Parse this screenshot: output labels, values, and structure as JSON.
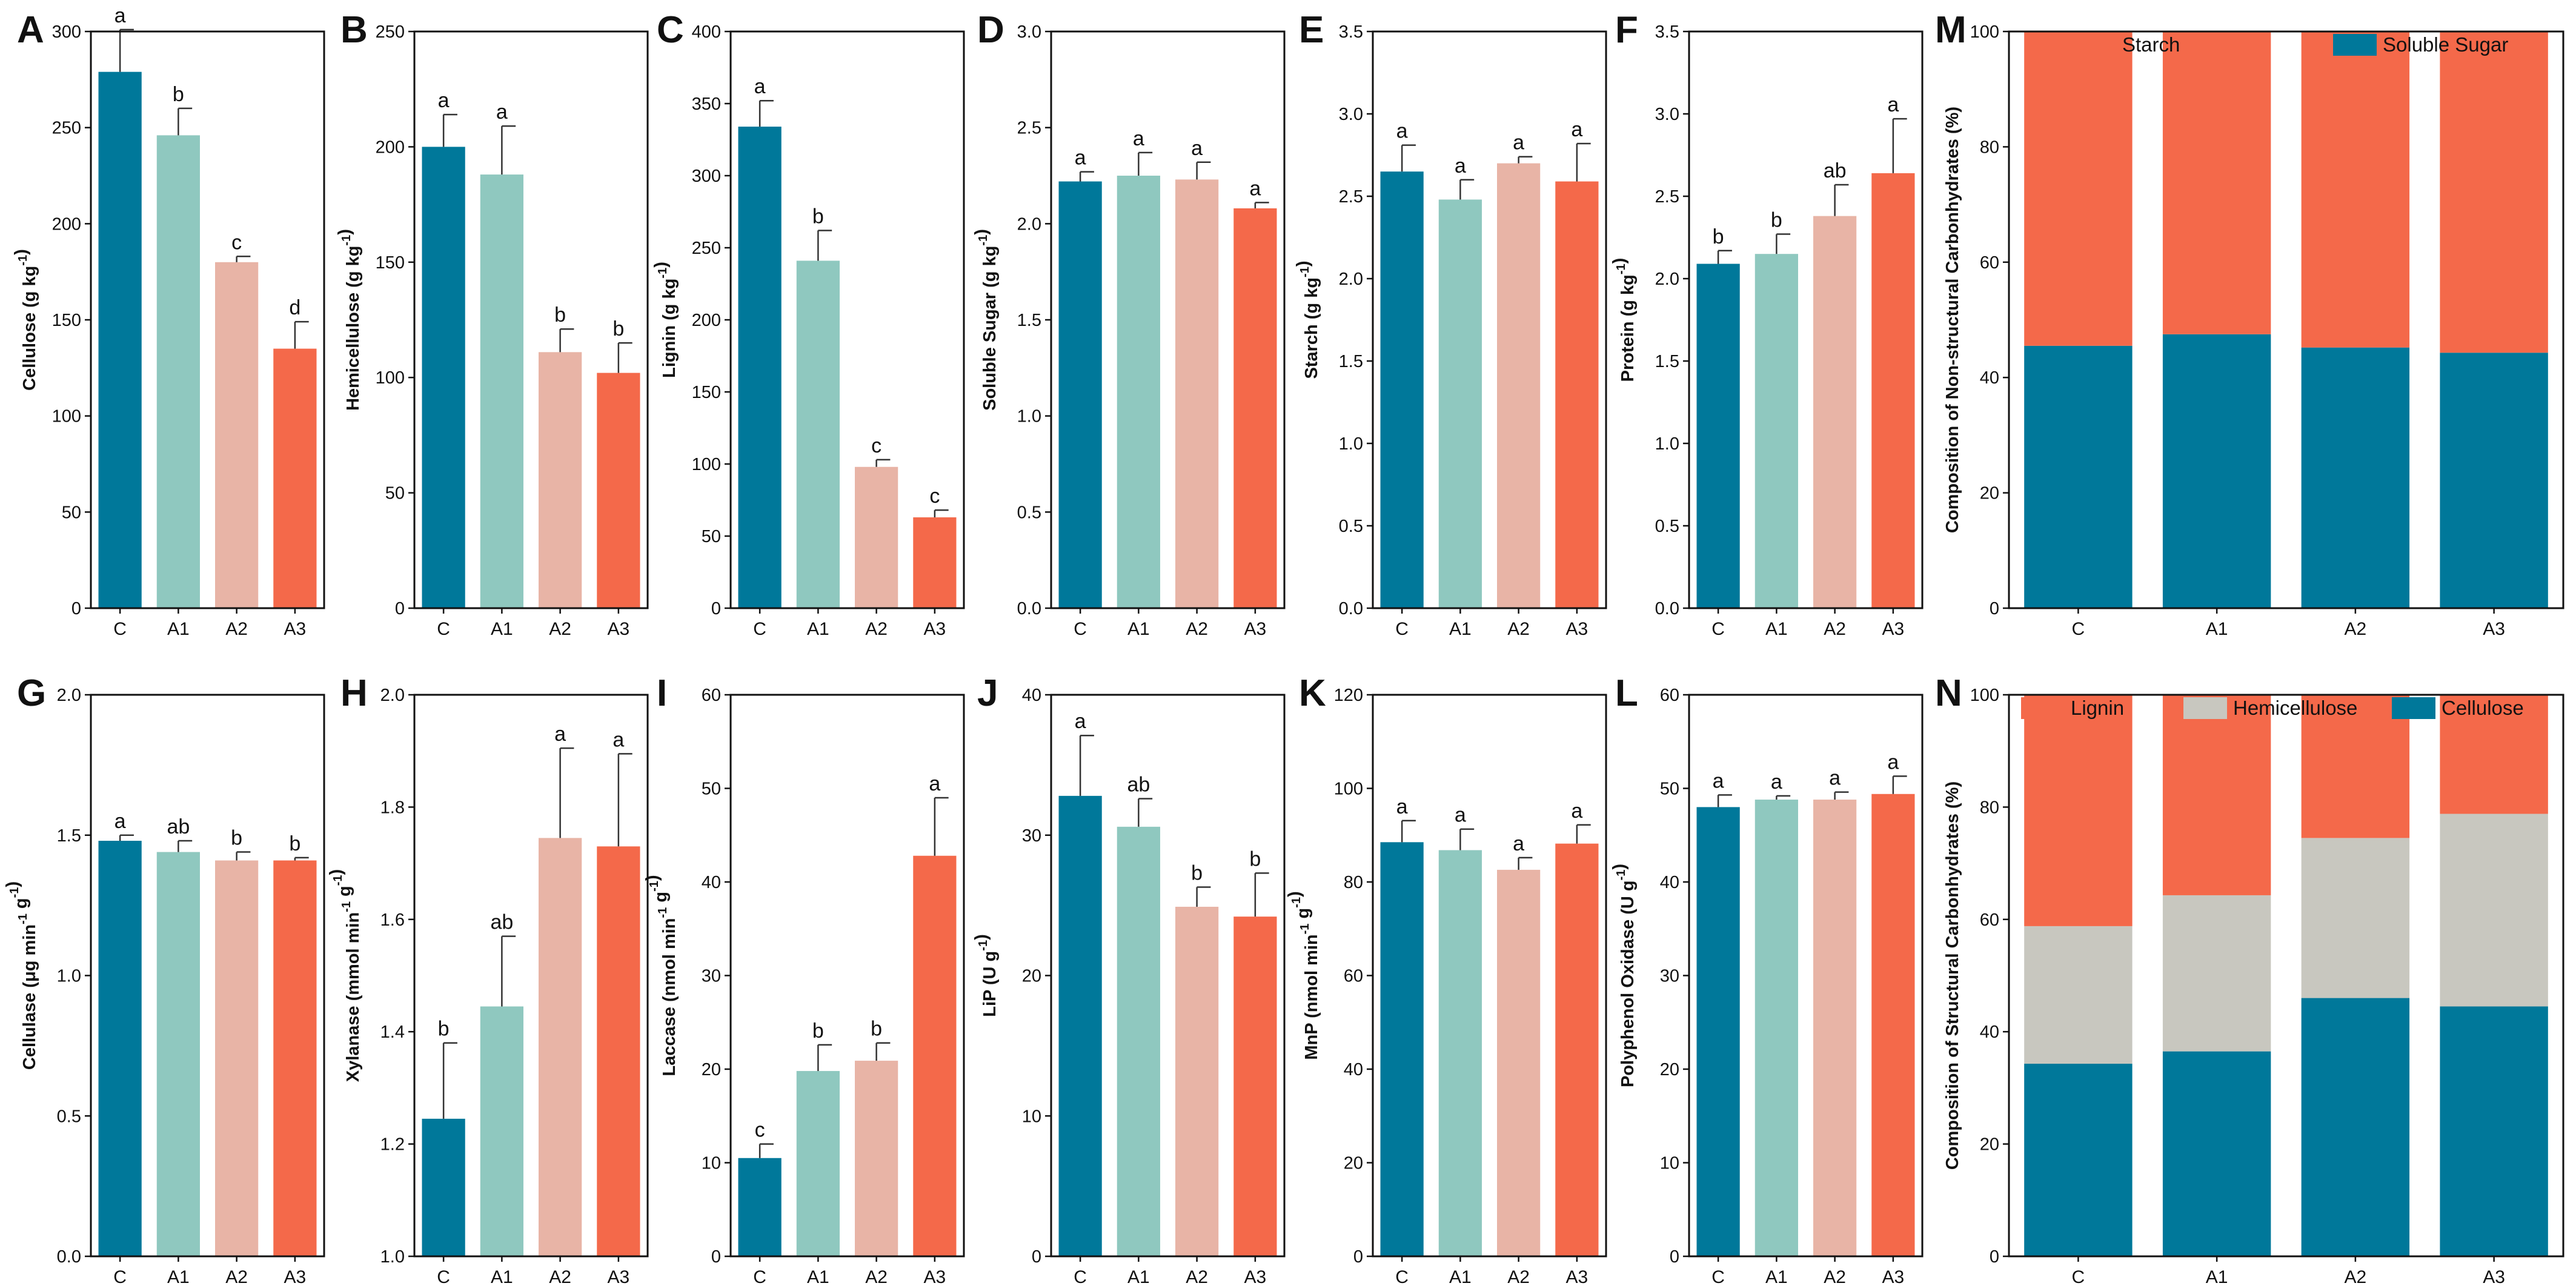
{
  "colors": {
    "C": "#00789A",
    "A1": "#8FC8BF",
    "A2": "#E8B4A6",
    "A3": "#F4694A",
    "Starch": "#F4694A",
    "SolubleSugar": "#00789A",
    "Lignin": "#F4694A",
    "Hemicellulose": "#C8C7BF",
    "Cellulose": "#00789A"
  },
  "chart_data": [
    {
      "id": "A",
      "type": "bar",
      "panel_label": "A",
      "ylabel": "Cellulose (g kg⁻¹)",
      "ylim": [
        0,
        300
      ],
      "yticks": [
        0,
        50,
        100,
        150,
        200,
        250,
        300
      ],
      "categories": [
        "C",
        "A1",
        "A2",
        "A3"
      ],
      "values": [
        279,
        246,
        180,
        135
      ],
      "errors": [
        22,
        14,
        3,
        14
      ],
      "letters": [
        "a",
        "b",
        "c",
        "d"
      ]
    },
    {
      "id": "B",
      "type": "bar",
      "panel_label": "B",
      "ylabel": "Hemicellulose (g kg⁻¹)",
      "ylim": [
        0,
        250
      ],
      "yticks": [
        0,
        50,
        100,
        150,
        200,
        250
      ],
      "categories": [
        "C",
        "A1",
        "A2",
        "A3"
      ],
      "values": [
        200,
        188,
        111,
        102
      ],
      "errors": [
        14,
        21,
        10,
        13
      ],
      "letters": [
        "a",
        "a",
        "b",
        "b"
      ]
    },
    {
      "id": "C",
      "type": "bar",
      "panel_label": "C",
      "ylabel": "Lignin (g kg⁻¹)",
      "ylim": [
        0,
        400
      ],
      "yticks": [
        0,
        50,
        100,
        150,
        200,
        250,
        300,
        350,
        400
      ],
      "categories": [
        "C",
        "A1",
        "A2",
        "A3"
      ],
      "values": [
        334,
        241,
        98,
        63
      ],
      "errors": [
        18,
        21,
        5,
        5
      ],
      "letters": [
        "a",
        "b",
        "c",
        "c"
      ]
    },
    {
      "id": "D",
      "type": "bar",
      "panel_label": "D",
      "ylabel": "Soluble Sugar (g kg⁻¹)",
      "ylim": [
        0,
        3.0
      ],
      "yticks": [
        0,
        0.5,
        1.0,
        1.5,
        2.0,
        2.5,
        3.0
      ],
      "categories": [
        "C",
        "A1",
        "A2",
        "A3"
      ],
      "values": [
        2.22,
        2.25,
        2.23,
        2.08
      ],
      "errors": [
        0.05,
        0.12,
        0.09,
        0.03
      ],
      "letters": [
        "a",
        "a",
        "a",
        "a"
      ]
    },
    {
      "id": "E",
      "type": "bar",
      "panel_label": "E",
      "ylabel": "Starch (g kg⁻¹)",
      "ylim": [
        0,
        3.5
      ],
      "yticks": [
        0,
        0.5,
        1.0,
        1.5,
        2.0,
        2.5,
        3.0,
        3.5
      ],
      "categories": [
        "C",
        "A1",
        "A2",
        "A3"
      ],
      "values": [
        2.65,
        2.48,
        2.7,
        2.59
      ],
      "errors": [
        0.16,
        0.12,
        0.04,
        0.23
      ],
      "letters": [
        "a",
        "a",
        "a",
        "a"
      ]
    },
    {
      "id": "F",
      "type": "bar",
      "panel_label": "F",
      "ylabel": "Protein (g kg⁻¹)",
      "ylim": [
        0,
        3.5
      ],
      "yticks": [
        0,
        0.5,
        1.0,
        1.5,
        2.0,
        2.5,
        3.0,
        3.5
      ],
      "categories": [
        "C",
        "A1",
        "A2",
        "A3"
      ],
      "values": [
        2.09,
        2.15,
        2.38,
        2.64
      ],
      "errors": [
        0.08,
        0.12,
        0.19,
        0.33
      ],
      "letters": [
        "b",
        "b",
        "ab",
        "a"
      ]
    },
    {
      "id": "G",
      "type": "bar",
      "panel_label": "G",
      "ylabel": "Cellulase (μg min⁻¹ g⁻¹)",
      "ylim": [
        0,
        2.0
      ],
      "yticks": [
        0,
        0.5,
        1.0,
        1.5,
        2.0
      ],
      "categories": [
        "C",
        "A1",
        "A2",
        "A3"
      ],
      "values": [
        1.48,
        1.44,
        1.41,
        1.41
      ],
      "errors": [
        0.02,
        0.04,
        0.03,
        0.01
      ],
      "letters": [
        "a",
        "ab",
        "b",
        "b"
      ]
    },
    {
      "id": "H",
      "type": "bar",
      "panel_label": "H",
      "ylabel": "Xylanase (mmol min⁻¹ g⁻¹)",
      "ylim": [
        1.0,
        2.0
      ],
      "yticks": [
        1.0,
        1.2,
        1.4,
        1.6,
        1.8,
        2.0
      ],
      "categories": [
        "C",
        "A1",
        "A2",
        "A3"
      ],
      "values": [
        1.245,
        1.445,
        1.745,
        1.73
      ],
      "errors": [
        0.135,
        0.125,
        0.16,
        0.165
      ],
      "letters": [
        "b",
        "ab",
        "a",
        "a"
      ]
    },
    {
      "id": "I",
      "type": "bar",
      "panel_label": "I",
      "ylabel": "Laccase (nmol min⁻¹ g⁻¹)",
      "ylim": [
        0,
        60
      ],
      "yticks": [
        0,
        10,
        20,
        30,
        40,
        50,
        60
      ],
      "categories": [
        "C",
        "A1",
        "A2",
        "A3"
      ],
      "values": [
        10.5,
        19.8,
        20.9,
        42.8
      ],
      "errors": [
        1.5,
        2.8,
        1.9,
        6.2
      ],
      "letters": [
        "c",
        "b",
        "b",
        "a"
      ]
    },
    {
      "id": "J",
      "type": "bar",
      "panel_label": "J",
      "ylabel": "LiP (U g⁻¹)",
      "ylim": [
        0,
        40
      ],
      "yticks": [
        0,
        10,
        20,
        30,
        40
      ],
      "categories": [
        "C",
        "A1",
        "A2",
        "A3"
      ],
      "values": [
        32.8,
        30.6,
        24.9,
        24.2
      ],
      "errors": [
        4.3,
        2.0,
        1.4,
        3.1
      ],
      "letters": [
        "a",
        "ab",
        "b",
        "b"
      ]
    },
    {
      "id": "K",
      "type": "bar",
      "panel_label": "K",
      "ylabel": "MnP (nmol min⁻¹ g⁻¹)",
      "ylim": [
        0,
        120
      ],
      "yticks": [
        0,
        20,
        40,
        60,
        80,
        100,
        120
      ],
      "categories": [
        "C",
        "A1",
        "A2",
        "A3"
      ],
      "values": [
        88.5,
        86.8,
        82.6,
        88.2
      ],
      "errors": [
        4.6,
        4.5,
        2.6,
        4.0
      ],
      "letters": [
        "a",
        "a",
        "a",
        "a"
      ]
    },
    {
      "id": "L",
      "type": "bar",
      "panel_label": "L",
      "ylabel": "Polyphenol Oxidase (U g⁻¹)",
      "ylim": [
        0,
        60
      ],
      "yticks": [
        0,
        10,
        20,
        30,
        40,
        50,
        60
      ],
      "categories": [
        "C",
        "A1",
        "A2",
        "A3"
      ],
      "values": [
        48.0,
        48.8,
        48.8,
        49.4
      ],
      "errors": [
        1.3,
        0.4,
        0.8,
        1.9
      ],
      "letters": [
        "a",
        "a",
        "a",
        "a"
      ]
    },
    {
      "id": "M",
      "type": "stacked_bar",
      "panel_label": "M",
      "ylabel": "Composition of Non-structural Carbonhydrates (%)",
      "ylim": [
        0,
        100
      ],
      "yticks": [
        0,
        20,
        40,
        60,
        80,
        100
      ],
      "categories": [
        "C",
        "A1",
        "A2",
        "A3"
      ],
      "legend": [
        "Starch",
        "Soluble Sugar"
      ],
      "series": [
        {
          "name": "Soluble Sugar",
          "color_key": "SolubleSugar",
          "values": [
            45.5,
            47.5,
            45.2,
            44.3
          ]
        },
        {
          "name": "Starch",
          "color_key": "Starch",
          "values": [
            54.5,
            52.5,
            54.8,
            55.7
          ]
        }
      ]
    },
    {
      "id": "N",
      "type": "stacked_bar",
      "panel_label": "N",
      "ylabel": "Composition of Structural Carbonhydrates (%)",
      "ylim": [
        0,
        100
      ],
      "yticks": [
        0,
        20,
        40,
        60,
        80,
        100
      ],
      "categories": [
        "C",
        "A1",
        "A2",
        "A3"
      ],
      "legend": [
        "Lignin",
        "Hemicellulose",
        "Cellulose"
      ],
      "series": [
        {
          "name": "Cellulose",
          "color_key": "Cellulose",
          "values": [
            34.3,
            36.5,
            46.0,
            44.5
          ]
        },
        {
          "name": "Hemicellulose",
          "color_key": "Hemicellulose",
          "values": [
            24.5,
            27.8,
            28.5,
            34.3
          ]
        },
        {
          "name": "Lignin",
          "color_key": "Lignin",
          "values": [
            41.2,
            35.7,
            25.5,
            21.2
          ]
        }
      ]
    }
  ]
}
